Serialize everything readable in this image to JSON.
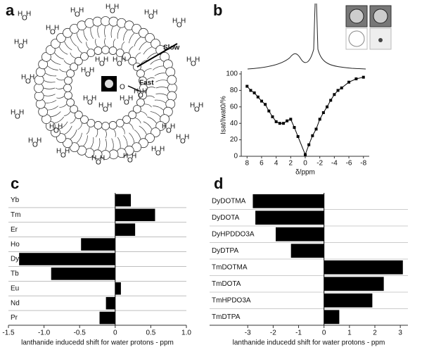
{
  "diagram": {
    "panel": "a",
    "slow": "Slow",
    "fast": "Fast",
    "h": "H",
    "o": "O"
  },
  "chart_data": [
    {
      "panel": "b",
      "type": "line",
      "color": "#000000",
      "x": [
        8,
        7.5,
        7,
        6.5,
        6,
        5.5,
        5,
        4.5,
        4,
        3.5,
        3,
        2.5,
        2,
        1.5,
        1,
        0,
        -0.5,
        -1,
        -1.5,
        -2,
        -2.5,
        -3,
        -3.5,
        -4,
        -4.5,
        -5,
        -6,
        -7,
        -8
      ],
      "values": [
        85,
        80,
        77,
        72,
        67,
        63,
        55,
        48,
        42,
        40,
        40,
        43,
        45,
        35,
        24,
        2,
        14,
        25,
        33,
        45,
        53,
        60,
        68,
        75,
        80,
        83,
        90,
        94,
        96
      ],
      "xlabel": "δ/ppm",
      "ylabel": "Isat/Iwat0/%",
      "xlim": [
        8.8,
        -8.8
      ],
      "ylim": [
        0,
        100
      ],
      "xticks": [
        8,
        6,
        4,
        2,
        0,
        -2,
        -4,
        -6,
        -8
      ],
      "yticks": [
        0,
        20,
        40,
        60,
        80,
        100
      ]
    },
    {
      "panel": "c",
      "type": "hbar",
      "color": "#000000",
      "categories": [
        "Yb",
        "Tm",
        "Er",
        "Ho",
        "Dy",
        "Tb",
        "Eu",
        "Nd",
        "Pr"
      ],
      "values": [
        0.22,
        0.56,
        0.28,
        -0.48,
        -1.35,
        -0.9,
        0.08,
        -0.13,
        -0.22
      ],
      "xlabel": "lanthanide inducedd shift for water protons - ppm",
      "xlim": [
        -1.5,
        1.0
      ],
      "xticks": [
        -1.5,
        {
          "value": -1,
          "label": "-1.0"
        },
        -0.5,
        0,
        0.5,
        {
          "value": 1,
          "label": "1.0"
        }
      ]
    },
    {
      "panel": "d",
      "type": "hbar",
      "color": "#000000",
      "categories": [
        "DyDOTMA",
        "DyDOTA",
        "DyHPDDO3A",
        "DyDTPA",
        "TmDOTMA",
        "TmDOTA",
        "TmHPDO3A",
        "TmDTPA"
      ],
      "values": [
        -2.8,
        -2.7,
        -1.9,
        -1.3,
        3.1,
        2.35,
        1.9,
        0.6
      ],
      "xlabel": "lanthanide inducedd shift for water protons - ppm",
      "xlim": [
        -4.5,
        3.3
      ],
      "xticks": [
        -3,
        -2,
        -1,
        0,
        1,
        2,
        3
      ]
    }
  ]
}
